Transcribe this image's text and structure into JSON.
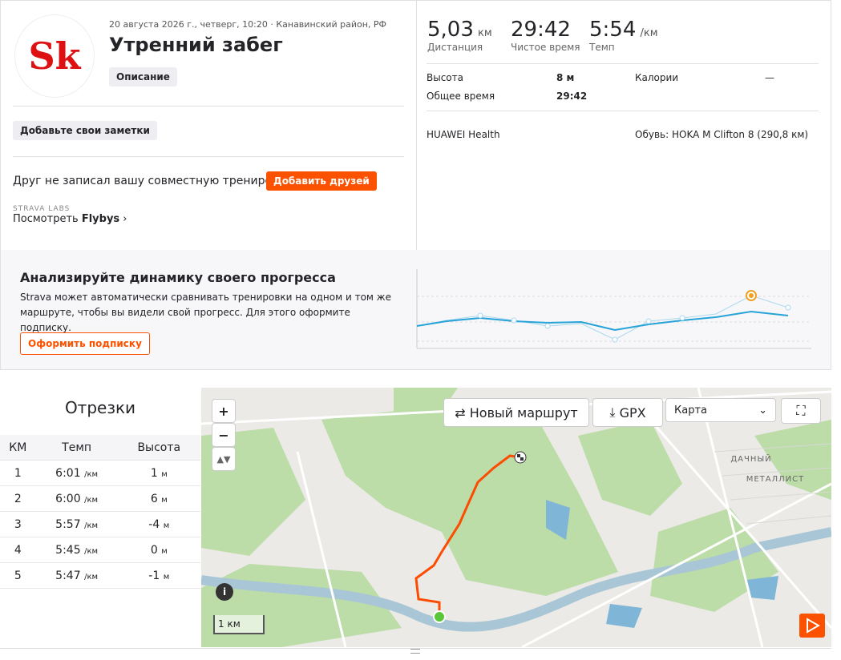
{
  "header": {
    "logo_text": "Sk",
    "date": "20 августа 2026 г., четверг, 10:20 · Канавинский район, РФ",
    "title": "Утренний забег",
    "description_button": "Описание"
  },
  "notes_button": "Добавьте свои заметки",
  "friends": {
    "question": "Друг не записал вашу совместную тренировку?",
    "button": "Добавить друзей"
  },
  "labs": {
    "label": "STRAVA LABS",
    "link_prefix": "Посмотреть",
    "link_bold": "Flybys"
  },
  "stats": [
    {
      "value": "5,03",
      "unit": "км",
      "label": "Дистанция"
    },
    {
      "value": "29:42",
      "label": "Чистое время"
    },
    {
      "value": "5:54",
      "unit": "/км",
      "label": "Темп"
    }
  ],
  "details": [
    {
      "label": "Высота",
      "value": "8 м"
    },
    {
      "label": "Калории",
      "value": "—"
    },
    {
      "label": "Общее время",
      "value": "29:42"
    }
  ],
  "device": "HUAWEI Health",
  "shoes_label": "Обувь:",
  "shoes_value": "HOKA M Clifton 8 (290,8 км)",
  "promo": {
    "title": "Анализируйте динамику своего прогресса",
    "text": "Strava может автоматически сравнивать тренировки на одном и том же маршруте, чтобы вы видели свой прогресс. Для этого оформите подписку.",
    "button": "Оформить подписку"
  },
  "splits": {
    "title": "Отрезки",
    "columns": [
      "КМ",
      "Темп",
      "Высота"
    ],
    "rows": [
      [
        "1",
        "6:01",
        "/км",
        "1",
        "м"
      ],
      [
        "2",
        "6:00",
        "/км",
        "6",
        "м"
      ],
      [
        "3",
        "5:57",
        "/км",
        "-4",
        "м"
      ],
      [
        "4",
        "5:45",
        "/км",
        "0",
        "м"
      ],
      [
        "5",
        "5:47",
        "/км",
        "-1",
        "м"
      ]
    ]
  },
  "map": {
    "zoom_in": "+",
    "zoom_out": "−",
    "new_route": "Новый маршрут",
    "gpx": "GPX",
    "layer": "Карта",
    "places": [
      "ДАЧНЫЙ",
      "МЕТАЛЛИСТ"
    ],
    "scale": "1 км"
  }
}
